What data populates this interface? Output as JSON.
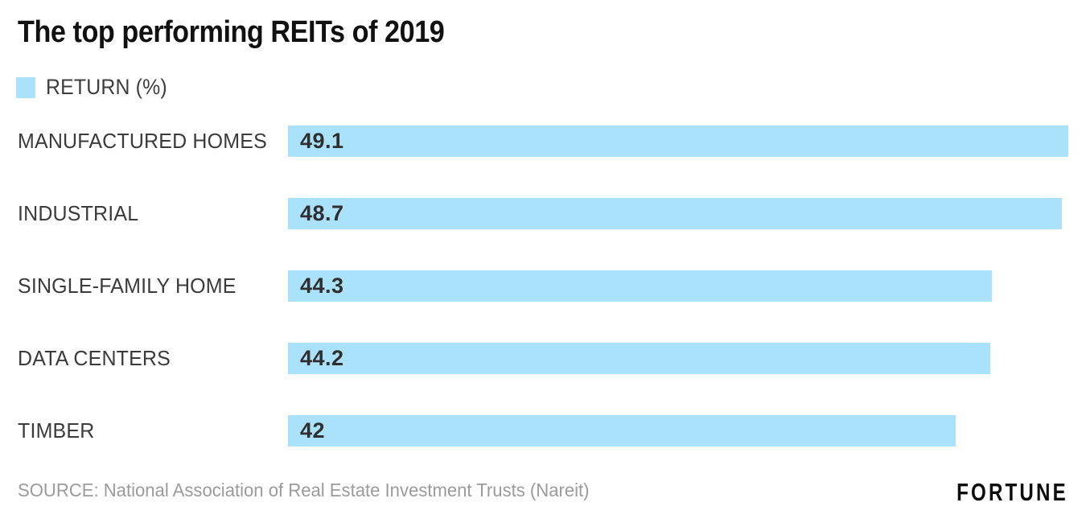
{
  "title": "The top performing REITs of 2019",
  "legend": {
    "label": "RETURN (%)",
    "swatch_color": "#abe2fb"
  },
  "chart_data": {
    "type": "bar",
    "orientation": "horizontal",
    "title": "The top performing REITs of 2019",
    "series_name": "RETURN (%)",
    "categories": [
      "MANUFACTURED HOMES",
      "INDUSTRIAL",
      "SINGLE-FAMILY HOME",
      "DATA CENTERS",
      "TIMBER"
    ],
    "values": [
      49.1,
      48.7,
      44.3,
      44.2,
      42
    ],
    "value_labels": [
      "49.1",
      "48.7",
      "44.3",
      "44.2",
      "42"
    ],
    "xlabel": "",
    "ylabel": "",
    "xlim": [
      0,
      49.1
    ],
    "grid": false,
    "bar_color": "#abe2fb",
    "value_label_position": "inside-left",
    "legend_position": "top-left"
  },
  "footer": {
    "source": "SOURCE: National Association of Real Estate Investment Trusts (Nareit)",
    "brand": "FORTUNE"
  }
}
